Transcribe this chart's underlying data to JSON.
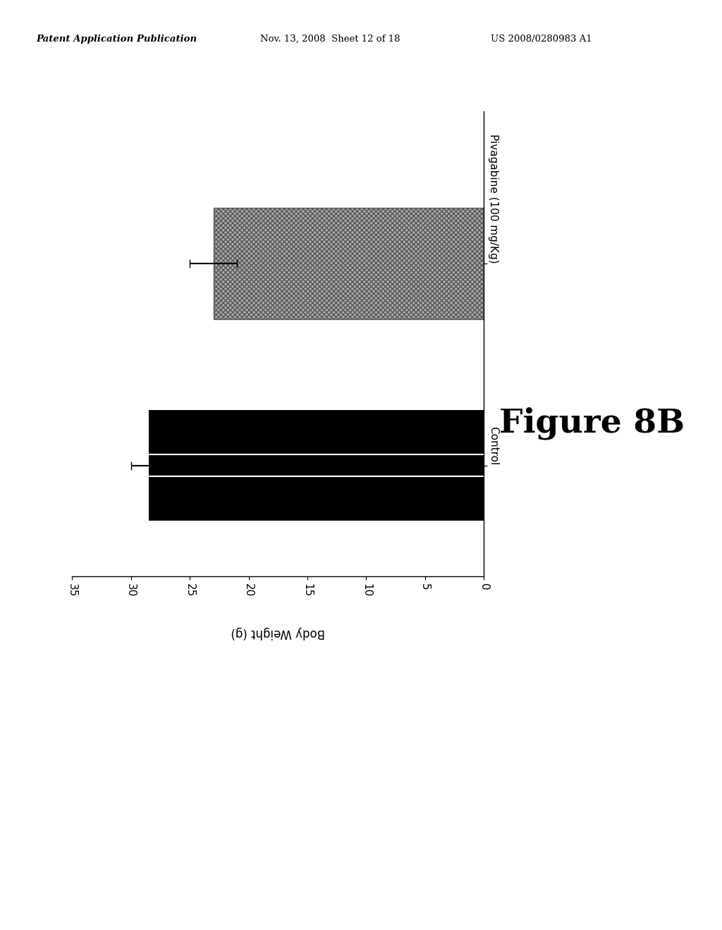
{
  "categories": [
    "Control",
    "Pivagabine (100 mg/Kg)"
  ],
  "values": [
    28.5,
    23.0
  ],
  "errors": [
    1.5,
    2.0
  ],
  "bar_colors": [
    "#000000",
    "#aaaaaa"
  ],
  "value_label": "Body Weight (g)",
  "xlim_max": 35,
  "xticks": [
    0,
    5,
    10,
    15,
    20,
    25,
    30,
    35
  ],
  "figure_label": "Figure 8B",
  "header_left": "Patent Application Publication",
  "header_mid": "Nov. 13, 2008  Sheet 12 of 18",
  "header_right": "US 2008/0280983 A1",
  "background_color": "#ffffff",
  "bar_width": 0.55,
  "hatch_pattern": "xxxxx"
}
